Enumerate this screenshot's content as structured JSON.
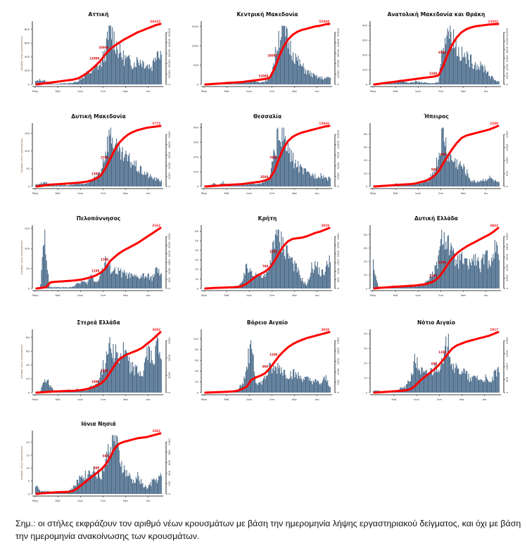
{
  "note": "Σημ.: οι στήλες εκφράζουν τον αριθμό νέων κρουσμάτων με βάση την ημερομηνία λήψης εργαστηριακού δείγματος, και όχι με βάση την ημερομηνία ανακοίνωσης των κρουσμάτων.",
  "colors": {
    "bars": "#4a6b8a",
    "cumulative_line": "#ff0000",
    "axis": "#000000"
  },
  "chart_data": [
    {
      "type": "bar",
      "title": "Αττική",
      "ylabel": "Αριθμός νέων κρουσμάτων",
      "x_ticks": [
        "Μαρ",
        "Μαΐ",
        "Ιουλ",
        "Σεπ",
        "Νοε",
        "Ιαν"
      ],
      "ylim": [
        0,
        900
      ],
      "y_ticks": [
        0,
        200,
        400,
        600,
        800
      ],
      "y2lim": [
        0,
        70000
      ],
      "y2_ticks": [
        0,
        10000,
        20000,
        30000,
        40000,
        50000
      ],
      "cumulative_end_label": "66432",
      "cumulative_mid_labels": [
        "11000",
        "33000"
      ],
      "bar_profile": [
        0.05,
        0.08,
        0.06,
        0.02,
        0.01,
        0.01,
        0.02,
        0.02,
        0.03,
        0.05,
        0.12,
        0.18,
        0.22,
        0.28,
        0.35,
        0.55,
        0.95,
        0.75,
        0.55,
        0.45,
        0.4,
        0.35,
        0.42,
        0.38,
        0.33,
        0.3,
        0.6,
        0.55
      ],
      "cumulative_profile": [
        0,
        0.01,
        0.02,
        0.03,
        0.04,
        0.05,
        0.06,
        0.07,
        0.08,
        0.1,
        0.14,
        0.19,
        0.25,
        0.32,
        0.4,
        0.5,
        0.58,
        0.64,
        0.69,
        0.74,
        0.78,
        0.82,
        0.86,
        0.89,
        0.92,
        0.95,
        0.98,
        1.0
      ]
    },
    {
      "type": "bar",
      "title": "Κεντρική Μακεδονία",
      "ylabel": "",
      "x_ticks": [
        "Μαρ",
        "Μαΐ",
        "Ιουλ",
        "Σεπ",
        "Νοε",
        "Ιαν"
      ],
      "ylim": [
        0,
        1600
      ],
      "y_ticks": [
        0,
        500,
        1000,
        1500
      ],
      "y2lim": [
        0,
        55000
      ],
      "y2_ticks": [
        0,
        10000,
        20000,
        30000,
        40000,
        50000
      ],
      "cumulative_end_label": "52048",
      "cumulative_mid_labels": [
        "11000",
        "26000"
      ],
      "bar_profile": [
        0.01,
        0.01,
        0.01,
        0.01,
        0.01,
        0.01,
        0.01,
        0.02,
        0.03,
        0.05,
        0.06,
        0.05,
        0.04,
        0.05,
        0.1,
        0.4,
        0.85,
        0.95,
        0.7,
        0.55,
        0.4,
        0.3,
        0.22,
        0.17,
        0.13,
        0.11,
        0.1,
        0.12
      ],
      "cumulative_profile": [
        0,
        0.005,
        0.01,
        0.015,
        0.02,
        0.025,
        0.03,
        0.035,
        0.04,
        0.05,
        0.06,
        0.07,
        0.08,
        0.09,
        0.11,
        0.25,
        0.45,
        0.62,
        0.74,
        0.82,
        0.87,
        0.9,
        0.92,
        0.94,
        0.96,
        0.97,
        0.99,
        1.0
      ]
    },
    {
      "type": "bar",
      "title": "Ανατολική Μακεδονία και Θράκη",
      "ylabel": "",
      "x_ticks": [
        "Μαρ",
        "Μαΐ",
        "Ιουλ",
        "Σεπ",
        "Νοε",
        "Ιαν"
      ],
      "ylim": [
        0,
        420
      ],
      "y_ticks": [
        0,
        100,
        200,
        300,
        400
      ],
      "y2lim": [
        0,
        14000
      ],
      "y2_ticks": [
        0,
        2000,
        4000,
        6000,
        8000,
        10000,
        12000
      ],
      "cumulative_end_label": "13332",
      "cumulative_mid_labels": [
        "3100",
        "6500"
      ],
      "bar_profile": [
        0.01,
        0.01,
        0.01,
        0.02,
        0.02,
        0.04,
        0.08,
        0.04,
        0.03,
        0.05,
        0.04,
        0.03,
        0.02,
        0.02,
        0.05,
        0.7,
        0.95,
        0.85,
        0.6,
        0.5,
        0.45,
        0.4,
        0.35,
        0.3,
        0.28,
        0.15,
        0.08,
        0.05
      ],
      "cumulative_profile": [
        0,
        0.01,
        0.02,
        0.03,
        0.04,
        0.05,
        0.06,
        0.07,
        0.08,
        0.09,
        0.1,
        0.11,
        0.12,
        0.13,
        0.15,
        0.3,
        0.5,
        0.66,
        0.78,
        0.86,
        0.91,
        0.94,
        0.96,
        0.97,
        0.98,
        0.99,
        0.995,
        1.0
      ]
    },
    {
      "type": "bar",
      "title": "Δυτική Μακεδονία",
      "ylabel": "Αριθμός νέων κρουσμάτων",
      "x_ticks": [
        "Μαρ",
        "Μαΐ",
        "Ιουλ",
        "Σεπ",
        "Νοε",
        "Ιαν"
      ],
      "ylim": [
        0,
        175
      ],
      "y_ticks": [
        0,
        50,
        100,
        150
      ],
      "y2lim": [
        0,
        6000
      ],
      "y2_ticks": [
        0,
        1000,
        2000,
        3000,
        4000,
        5000
      ],
      "cumulative_end_label": "5775",
      "cumulative_mid_labels": [
        "1300",
        "2700"
      ],
      "bar_profile": [
        0.03,
        0.05,
        0.08,
        0.03,
        0.02,
        0.02,
        0.02,
        0.02,
        0.03,
        0.05,
        0.04,
        0.05,
        0.1,
        0.15,
        0.28,
        0.6,
        0.95,
        0.7,
        0.55,
        0.5,
        0.45,
        0.4,
        0.3,
        0.25,
        0.2,
        0.15,
        0.12,
        0.1
      ],
      "cumulative_profile": [
        0,
        0.01,
        0.02,
        0.03,
        0.035,
        0.04,
        0.045,
        0.05,
        0.055,
        0.06,
        0.07,
        0.08,
        0.1,
        0.13,
        0.18,
        0.3,
        0.45,
        0.6,
        0.72,
        0.8,
        0.86,
        0.9,
        0.93,
        0.95,
        0.97,
        0.98,
        0.99,
        1.0
      ]
    },
    {
      "type": "bar",
      "title": "Θεσσαλία",
      "ylabel": "",
      "x_ticks": [
        "Μαρ",
        "Μαΐ",
        "Ιουλ",
        "Σεπ",
        "Νοε",
        "Ιαν"
      ],
      "ylim": [
        0,
        420
      ],
      "y_ticks": [
        0,
        100,
        200,
        300,
        400
      ],
      "y2lim": [
        0,
        14500
      ],
      "y2_ticks": [
        0,
        2500,
        5000,
        7500,
        10000,
        12500
      ],
      "cumulative_end_label": "13936",
      "cumulative_mid_labels": [
        "3500",
        "7000"
      ],
      "bar_profile": [
        0.01,
        0.02,
        0.05,
        0.02,
        0.08,
        0.02,
        0.02,
        0.02,
        0.02,
        0.03,
        0.04,
        0.05,
        0.06,
        0.08,
        0.15,
        0.55,
        0.95,
        0.85,
        0.6,
        0.45,
        0.35,
        0.28,
        0.22,
        0.2,
        0.18,
        0.2,
        0.15,
        0.12
      ],
      "cumulative_profile": [
        0,
        0.005,
        0.01,
        0.015,
        0.02,
        0.025,
        0.03,
        0.035,
        0.04,
        0.05,
        0.06,
        0.07,
        0.08,
        0.1,
        0.13,
        0.25,
        0.45,
        0.63,
        0.75,
        0.82,
        0.86,
        0.89,
        0.91,
        0.93,
        0.95,
        0.97,
        0.99,
        1.0
      ]
    },
    {
      "type": "bar",
      "title": "Ήπειρος",
      "ylabel": "",
      "x_ticks": [
        "Μαρ",
        "Μαΐ",
        "Ιουλ",
        "Σεπ",
        "Νοε",
        "Ιαν"
      ],
      "ylim": [
        0,
        95
      ],
      "y_ticks": [
        0,
        20,
        40,
        60,
        80
      ],
      "y2lim": [
        0,
        2400
      ],
      "y2_ticks": [
        0,
        500,
        1000,
        1500,
        2000
      ],
      "cumulative_end_label": "2280",
      "cumulative_mid_labels": [
        "500",
        "900"
      ],
      "bar_profile": [
        0.01,
        0.01,
        0.01,
        0.01,
        0.02,
        0.05,
        0.02,
        0.02,
        0.03,
        0.04,
        0.05,
        0.08,
        0.12,
        0.25,
        0.5,
        0.95,
        0.55,
        0.45,
        0.4,
        0.35,
        0.25,
        0.1,
        0.08,
        0.1,
        0.12,
        0.15,
        0.1,
        0.06
      ],
      "cumulative_profile": [
        0,
        0.005,
        0.01,
        0.015,
        0.02,
        0.025,
        0.03,
        0.035,
        0.04,
        0.05,
        0.07,
        0.09,
        0.12,
        0.17,
        0.25,
        0.38,
        0.5,
        0.62,
        0.72,
        0.8,
        0.84,
        0.86,
        0.88,
        0.9,
        0.92,
        0.94,
        0.97,
        1.0
      ]
    },
    {
      "type": "bar",
      "title": "Πελοπόννησος",
      "ylabel": "Αριθμός νέων κρουσμάτων",
      "x_ticks": [
        "Μαρ",
        "Μαΐ",
        "Ιουλ",
        "Σεπ",
        "Νοε",
        "Ιαν"
      ],
      "ylim": [
        0,
        155
      ],
      "y_ticks": [
        0,
        50,
        100,
        150
      ],
      "y2lim": [
        0,
        3300
      ],
      "y2_ticks": [
        0,
        500,
        1000,
        1500,
        2000,
        2500,
        3000
      ],
      "cumulative_end_label": "3162",
      "cumulative_mid_labels": [
        "1100",
        "1700"
      ],
      "bar_profile": [
        0.01,
        0.01,
        0.95,
        0.02,
        0.02,
        0.02,
        0.02,
        0.02,
        0.03,
        0.08,
        0.12,
        0.08,
        0.22,
        0.1,
        0.25,
        0.45,
        0.35,
        0.3,
        0.28,
        0.25,
        0.22,
        0.2,
        0.18,
        0.22,
        0.2,
        0.18,
        0.32,
        0.2
      ],
      "cumulative_profile": [
        0,
        0.01,
        0.02,
        0.1,
        0.11,
        0.115,
        0.12,
        0.125,
        0.13,
        0.14,
        0.15,
        0.17,
        0.19,
        0.22,
        0.26,
        0.33,
        0.45,
        0.52,
        0.58,
        0.63,
        0.67,
        0.71,
        0.75,
        0.8,
        0.85,
        0.9,
        0.95,
        1.0
      ]
    },
    {
      "type": "bar",
      "title": "Κρήτη",
      "ylabel": "",
      "x_ticks": [
        "Μαρ",
        "Μαΐ",
        "Ιουλ",
        "Σεπ",
        "Νοε",
        "Ιαν"
      ],
      "ylim": [
        0,
        65
      ],
      "y_ticks": [
        0,
        10,
        20,
        30,
        40,
        50,
        60
      ],
      "y2lim": [
        0,
        3100
      ],
      "y2_ticks": [
        0,
        500,
        1000,
        1500,
        2000,
        2500,
        3000
      ],
      "cumulative_end_label": "3028",
      "cumulative_mid_labels": [
        "700",
        "1500"
      ],
      "bar_profile": [
        0.01,
        0.01,
        0.01,
        0.01,
        0.01,
        0.01,
        0.02,
        0.04,
        0.08,
        0.35,
        0.3,
        0.25,
        0.22,
        0.2,
        0.35,
        0.95,
        0.85,
        0.75,
        0.6,
        0.45,
        0.3,
        0.15,
        0.05,
        0.35,
        0.4,
        0.25,
        0.3,
        0.6
      ],
      "cumulative_profile": [
        0,
        0.005,
        0.01,
        0.012,
        0.015,
        0.018,
        0.02,
        0.025,
        0.04,
        0.08,
        0.14,
        0.2,
        0.24,
        0.28,
        0.34,
        0.45,
        0.58,
        0.7,
        0.78,
        0.82,
        0.83,
        0.84,
        0.86,
        0.89,
        0.92,
        0.94,
        0.97,
        1.0
      ]
    },
    {
      "type": "bar",
      "title": "Δυτική Ελλάδα",
      "ylabel": "",
      "x_ticks": [
        "Μαρ",
        "Μαΐ",
        "Ιουλ",
        "Σεπ",
        "Νοε",
        "Ιαν"
      ],
      "ylim": [
        0,
        92
      ],
      "y_ticks": [
        0,
        20,
        40,
        60,
        80
      ],
      "y2lim": [
        0,
        5000
      ],
      "y2_ticks": [
        0,
        1000,
        2000,
        3000,
        4000,
        5000
      ],
      "cumulative_end_label": "4843",
      "cumulative_mid_labels": [
        "1100",
        "2200"
      ],
      "bar_profile": [
        0.45,
        0.03,
        0.02,
        0.02,
        0.02,
        0.02,
        0.02,
        0.03,
        0.04,
        0.05,
        0.06,
        0.08,
        0.18,
        0.25,
        0.5,
        0.95,
        0.8,
        0.55,
        0.45,
        0.5,
        0.4,
        0.45,
        0.5,
        0.35,
        0.55,
        0.45,
        0.7,
        0.6
      ],
      "cumulative_profile": [
        0,
        0.01,
        0.015,
        0.02,
        0.025,
        0.03,
        0.035,
        0.04,
        0.045,
        0.05,
        0.06,
        0.07,
        0.09,
        0.12,
        0.18,
        0.28,
        0.4,
        0.5,
        0.58,
        0.64,
        0.69,
        0.73,
        0.77,
        0.81,
        0.85,
        0.89,
        0.94,
        1.0
      ]
    },
    {
      "type": "bar",
      "title": "Στερεά Ελλάδα",
      "ylabel": "Αριθμός νέων κρουσμάτων",
      "x_ticks": [
        "Μαρ",
        "Μαΐ",
        "Ιουλ",
        "Σεπ",
        "Νοε",
        "Ιαν"
      ],
      "ylim": [
        0,
        90
      ],
      "y_ticks": [
        0,
        20,
        40,
        60,
        80
      ],
      "y2lim": [
        0,
        3700
      ],
      "y2_ticks": [
        0,
        1000,
        2000,
        3000
      ],
      "cumulative_end_label": "3682",
      "cumulative_mid_labels": [
        "1000",
        "1900"
      ],
      "bar_profile": [
        0.01,
        0.02,
        0.25,
        0.15,
        0.02,
        0.02,
        0.02,
        0.05,
        0.02,
        0.06,
        0.03,
        0.04,
        0.1,
        0.15,
        0.3,
        0.55,
        0.95,
        0.7,
        0.6,
        0.7,
        0.5,
        0.4,
        0.35,
        0.3,
        0.7,
        0.55,
        0.8,
        0.65
      ],
      "cumulative_profile": [
        0,
        0.005,
        0.01,
        0.015,
        0.02,
        0.022,
        0.025,
        0.028,
        0.03,
        0.035,
        0.045,
        0.06,
        0.08,
        0.11,
        0.15,
        0.22,
        0.33,
        0.45,
        0.55,
        0.6,
        0.64,
        0.67,
        0.7,
        0.74,
        0.8,
        0.86,
        0.93,
        1.0
      ]
    },
    {
      "type": "bar",
      "title": "Βόρειο Αιγαίο",
      "ylabel": "",
      "x_ticks": [
        "Μαρ",
        "Μαΐ",
        "Ιουλ",
        "Σεπ",
        "Νοε",
        "Ιαν"
      ],
      "ylim": [
        0,
        115
      ],
      "y_ticks": [
        0,
        20,
        40,
        60,
        80,
        100
      ],
      "y2lim": [
        0,
        2900
      ],
      "y2_ticks": [
        0,
        500,
        1000,
        1500,
        2000,
        2500
      ],
      "cumulative_end_label": "2820",
      "cumulative_mid_labels": [
        "800",
        "1200"
      ],
      "bar_profile": [
        0.01,
        0.01,
        0.01,
        0.01,
        0.01,
        0.01,
        0.02,
        0.03,
        0.15,
        0.3,
        0.98,
        0.2,
        0.15,
        0.25,
        0.4,
        0.38,
        0.45,
        0.35,
        0.3,
        0.32,
        0.28,
        0.25,
        0.22,
        0.2,
        0.18,
        0.15,
        0.25,
        0.1
      ],
      "cumulative_profile": [
        0,
        0.003,
        0.006,
        0.009,
        0.012,
        0.015,
        0.02,
        0.03,
        0.06,
        0.1,
        0.21,
        0.25,
        0.28,
        0.32,
        0.4,
        0.5,
        0.6,
        0.68,
        0.75,
        0.8,
        0.84,
        0.87,
        0.9,
        0.92,
        0.94,
        0.96,
        0.98,
        1.0
      ]
    },
    {
      "type": "bar",
      "title": "Νότιο Αιγαίο",
      "ylabel": "",
      "x_ticks": [
        "Μαΐ",
        "Ιουλ",
        "Σεπ",
        "Νοε",
        "Ιαν"
      ],
      "ylim": [
        0,
        42
      ],
      "y_ticks": [
        0,
        10,
        20,
        30,
        40
      ],
      "y2lim": [
        0,
        2000
      ],
      "y2_ticks": [
        0,
        500,
        1000,
        1500,
        2000
      ],
      "cumulative_end_label": "1917",
      "cumulative_mid_labels": [
        "600",
        "1100"
      ],
      "bar_profile": [
        0.03,
        0.03,
        0.02,
        0.02,
        0.02,
        0.03,
        0.08,
        0.1,
        0.25,
        0.55,
        0.4,
        0.3,
        0.35,
        0.4,
        0.5,
        0.45,
        0.95,
        0.5,
        0.35,
        0.4,
        0.3,
        0.2,
        0.3,
        0.2,
        0.25,
        0.15,
        0.3,
        0.35
      ],
      "cumulative_profile": [
        0,
        0.005,
        0.01,
        0.015,
        0.02,
        0.025,
        0.03,
        0.04,
        0.06,
        0.12,
        0.2,
        0.26,
        0.32,
        0.38,
        0.45,
        0.54,
        0.64,
        0.73,
        0.78,
        0.81,
        0.84,
        0.86,
        0.88,
        0.9,
        0.92,
        0.94,
        0.97,
        1.0
      ]
    },
    {
      "type": "bar",
      "title": "Ιόνια Νησιά",
      "ylabel": "Αριθμός νέων κρουσμάτων",
      "x_ticks": [
        "Μαρ",
        "Μαΐ",
        "Ιουλ",
        "Σεπ",
        "Νοε",
        "Ιαν"
      ],
      "ylim": [
        0,
        24
      ],
      "y_ticks": [
        0,
        5,
        10,
        15,
        20
      ],
      "y2lim": [
        0,
        1100
      ],
      "y2_ticks": [
        0,
        200,
        400,
        600,
        800,
        1000
      ],
      "cumulative_end_label": "1082",
      "cumulative_mid_labels": [
        "300",
        "600"
      ],
      "bar_profile": [
        0.15,
        0.05,
        0.05,
        0.05,
        0.03,
        0.03,
        0.03,
        0.05,
        0.1,
        0.2,
        0.35,
        0.3,
        0.45,
        0.35,
        0.3,
        0.5,
        0.85,
        0.95,
        0.6,
        0.4,
        0.3,
        0.2,
        0.3,
        0.15,
        0.1,
        0.2,
        0.25,
        0.3
      ],
      "cumulative_profile": [
        0,
        0.01,
        0.015,
        0.02,
        0.025,
        0.03,
        0.032,
        0.035,
        0.05,
        0.1,
        0.16,
        0.22,
        0.28,
        0.34,
        0.4,
        0.48,
        0.6,
        0.75,
        0.83,
        0.86,
        0.88,
        0.9,
        0.92,
        0.93,
        0.94,
        0.96,
        0.98,
        1.0
      ]
    }
  ]
}
